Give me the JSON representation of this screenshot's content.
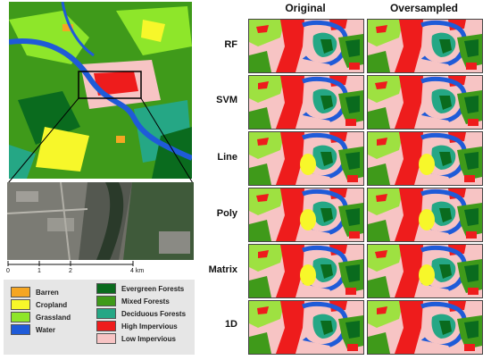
{
  "columns": [
    "Original",
    "Oversampled"
  ],
  "rows": [
    "RF",
    "SVM",
    "Line",
    "Poly",
    "Matrix",
    "1D"
  ],
  "scalebar": {
    "ticks": [
      "0",
      "1",
      "2",
      "4 km"
    ]
  },
  "legend": {
    "left": [
      {
        "label": "Barren",
        "color": "#f5a623"
      },
      {
        "label": "Cropland",
        "color": "#f7f72a"
      },
      {
        "label": "Grassland",
        "color": "#8ee62a"
      },
      {
        "label": "Water",
        "color": "#1f5bd8"
      }
    ],
    "right": [
      {
        "label": "Evergreen Forests",
        "color": "#0a6b1e"
      },
      {
        "label": "Mixed Forests",
        "color": "#3f9a1a"
      },
      {
        "label": "Deciduous Forests",
        "color": "#25a785"
      },
      {
        "label": "High Impervious",
        "color": "#ee1c1c"
      },
      {
        "label": "Low Impervious",
        "color": "#f7c4c4"
      }
    ]
  },
  "colors": {
    "low_impervious": "#f7c4c4",
    "high_impervious": "#ee1c1c",
    "water": "#1f5bd8",
    "deciduous": "#25a785",
    "mixed": "#3f9a1a",
    "evergreen": "#0a6b1e",
    "grassland": "#8ee62a",
    "cropland": "#f7f72a",
    "barren": "#f5a623"
  }
}
